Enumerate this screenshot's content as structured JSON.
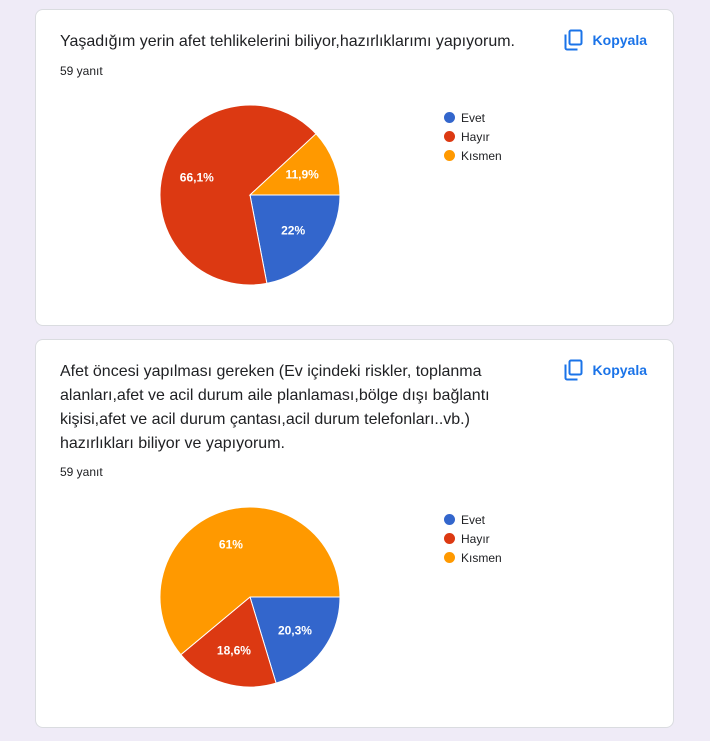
{
  "colors": {
    "Evet": "#3366cc",
    "Hayır": "#dc3912",
    "Kısmen": "#ff9900",
    "accent": "#1a73e8"
  },
  "cards": [
    {
      "title": "Yaşadığım yerin afet tehlikelerini biliyor,hazırlıklarımı yapıyorum.",
      "responses": "59 yanıt",
      "copy_label": "Kopyala"
    },
    {
      "title": "Afet öncesi yapılması gereken (Ev içindeki riskler, toplanma\nalanları,afet ve acil durum aile planlaması,bölge dışı bağlantı\nkişisi,afet ve acil durum çantası,acil durum telefonları..vb.)\nhazırlıkları biliyor ve yapıyorum.",
      "responses": "59 yanıt",
      "copy_label": "Kopyala"
    }
  ],
  "chart_data": [
    {
      "type": "pie",
      "legend_position": "right",
      "categories": [
        "Evet",
        "Hayır",
        "Kısmen"
      ],
      "values": [
        22,
        66.1,
        11.9
      ],
      "labels": [
        "22%",
        "66,1%",
        "11,9%"
      ]
    },
    {
      "type": "pie",
      "legend_position": "right",
      "categories": [
        "Evet",
        "Hayır",
        "Kısmen"
      ],
      "values": [
        20.3,
        18.6,
        61
      ],
      "labels": [
        "20,3%",
        "18,6%",
        "61%"
      ]
    }
  ]
}
